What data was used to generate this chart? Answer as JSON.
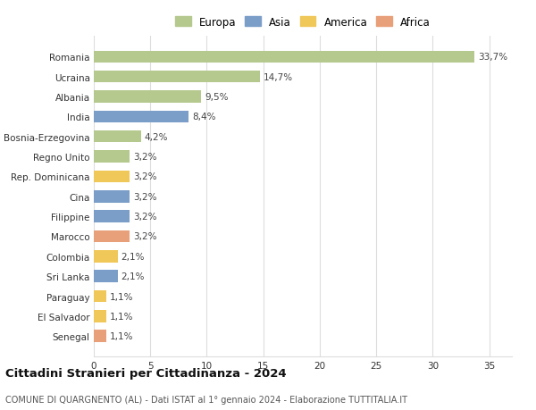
{
  "categories": [
    "Romania",
    "Ucraina",
    "Albania",
    "India",
    "Bosnia-Erzegovina",
    "Regno Unito",
    "Rep. Dominicana",
    "Cina",
    "Filippine",
    "Marocco",
    "Colombia",
    "Sri Lanka",
    "Paraguay",
    "El Salvador",
    "Senegal"
  ],
  "values": [
    33.7,
    14.7,
    9.5,
    8.4,
    4.2,
    3.2,
    3.2,
    3.2,
    3.2,
    3.2,
    2.1,
    2.1,
    1.1,
    1.1,
    1.1
  ],
  "labels": [
    "33,7%",
    "14,7%",
    "9,5%",
    "8,4%",
    "4,2%",
    "3,2%",
    "3,2%",
    "3,2%",
    "3,2%",
    "3,2%",
    "2,1%",
    "2,1%",
    "1,1%",
    "1,1%",
    "1,1%"
  ],
  "continents": [
    "Europa",
    "Europa",
    "Europa",
    "Asia",
    "Europa",
    "Europa",
    "America",
    "Asia",
    "Asia",
    "Africa",
    "America",
    "Asia",
    "America",
    "America",
    "Africa"
  ],
  "continent_colors": {
    "Europa": "#b5c98e",
    "Asia": "#7b9ec8",
    "America": "#f0c85a",
    "Africa": "#e8a07a"
  },
  "legend_order": [
    "Europa",
    "Asia",
    "America",
    "Africa"
  ],
  "title": "Cittadini Stranieri per Cittadinanza - 2024",
  "subtitle": "COMUNE DI QUARGNENTO (AL) - Dati ISTAT al 1° gennaio 2024 - Elaborazione TUTTITALIA.IT",
  "xlim": [
    0,
    37
  ],
  "xticks": [
    0,
    5,
    10,
    15,
    20,
    25,
    30,
    35
  ],
  "bg_color": "#ffffff",
  "grid_color": "#dddddd",
  "bar_height": 0.6,
  "label_fontsize": 7.5,
  "tick_fontsize": 7.5,
  "title_fontsize": 9.5,
  "subtitle_fontsize": 7
}
